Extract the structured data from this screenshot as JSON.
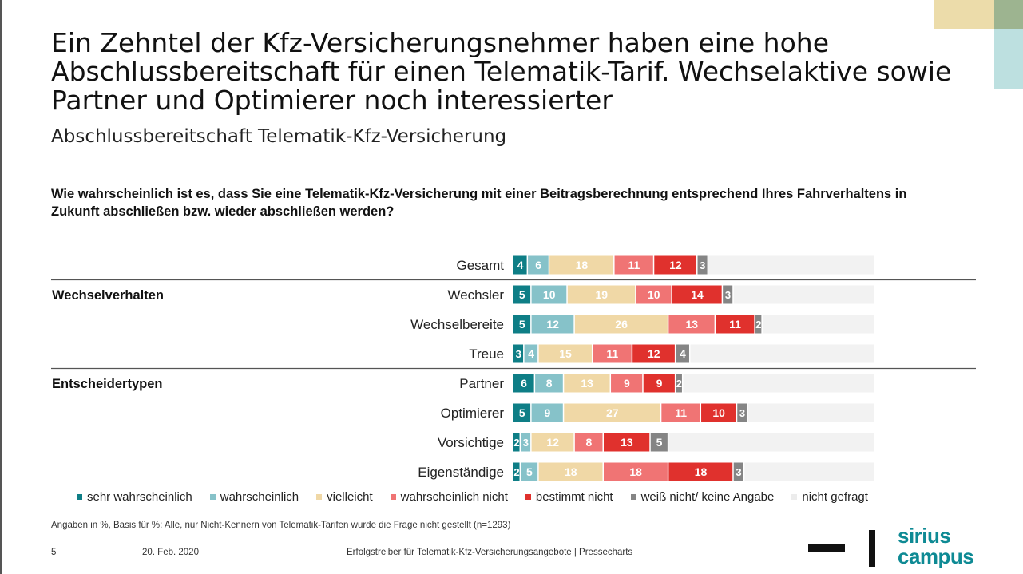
{
  "title": "Ein Zehntel der Kfz-Versicherungsnehmer haben eine hohe Abschlussbereitschaft für einen Telematik-Tarif. Wechselaktive sowie Partner und Optimierer noch interessierter",
  "subtitle": "Abschlussbereitschaft Telematik-Kfz-Versicherung",
  "question": "Wie wahrscheinlich ist es, dass Sie eine Telematik-Kfz-Versicherung mit einer Beitragsberechnung entsprechend Ihres Fahrverhaltens in Zukunft abschließen bzw. wieder abschließen werden?",
  "colors": {
    "sehr_wahrscheinlich": "#0e7e86",
    "wahrscheinlich": "#86c2c9",
    "vielleicht": "#f0d8a6",
    "wahrscheinlich_nicht": "#f07474",
    "bestimmt_nicht": "#e0312d",
    "weiss_nicht": "#858585",
    "nicht_gefragt": "#f2f2f2"
  },
  "chart_data": {
    "type": "bar",
    "orientation": "horizontal",
    "stacked": true,
    "unit": "%",
    "xlim": [
      0,
      100
    ],
    "groups": [
      {
        "label": "",
        "categories": [
          "Gesamt"
        ]
      },
      {
        "label": "Wechselverhalten",
        "categories": [
          "Wechsler",
          "Wechselbereite",
          "Treue"
        ]
      },
      {
        "label": "Entscheidertypen",
        "categories": [
          "Partner",
          "Optimierer",
          "Vorsichtige",
          "Eigenständige"
        ]
      }
    ],
    "categories": [
      "Gesamt",
      "Wechsler",
      "Wechselbereite",
      "Treue",
      "Partner",
      "Optimierer",
      "Vorsichtige",
      "Eigenständige"
    ],
    "series": [
      {
        "name": "sehr wahrscheinlich",
        "values": [
          4,
          5,
          5,
          3,
          6,
          5,
          2,
          2
        ]
      },
      {
        "name": "wahrscheinlich",
        "values": [
          6,
          10,
          12,
          4,
          8,
          9,
          3,
          5
        ]
      },
      {
        "name": "vielleicht",
        "values": [
          18,
          19,
          26,
          15,
          13,
          27,
          12,
          18
        ]
      },
      {
        "name": "wahrscheinlich nicht",
        "values": [
          11,
          10,
          13,
          11,
          9,
          11,
          8,
          18
        ]
      },
      {
        "name": "bestimmt nicht",
        "values": [
          12,
          14,
          11,
          12,
          9,
          10,
          13,
          18
        ]
      },
      {
        "name": "weiß nicht/ keine Angabe",
        "values": [
          3,
          3,
          2,
          4,
          2,
          3,
          5,
          3
        ]
      },
      {
        "name": "nicht gefragt",
        "values": [
          46,
          39,
          31,
          51,
          53,
          35,
          57,
          36
        ]
      }
    ],
    "legend_position": "bottom",
    "grid": false
  },
  "footnote": "Angaben in %, Basis für %: Alle, nur Nicht-Kennern von Telematik-Tarifen wurde die Frage nicht gestellt (n=1293)",
  "footer": {
    "page": "5",
    "date": "20. Feb. 2020",
    "caption": "Erfolgstreiber für Telematik-Kfz-Versicherungsangebote | Pressecharts"
  },
  "logo": {
    "line1": "sirius",
    "line2": "campus"
  }
}
